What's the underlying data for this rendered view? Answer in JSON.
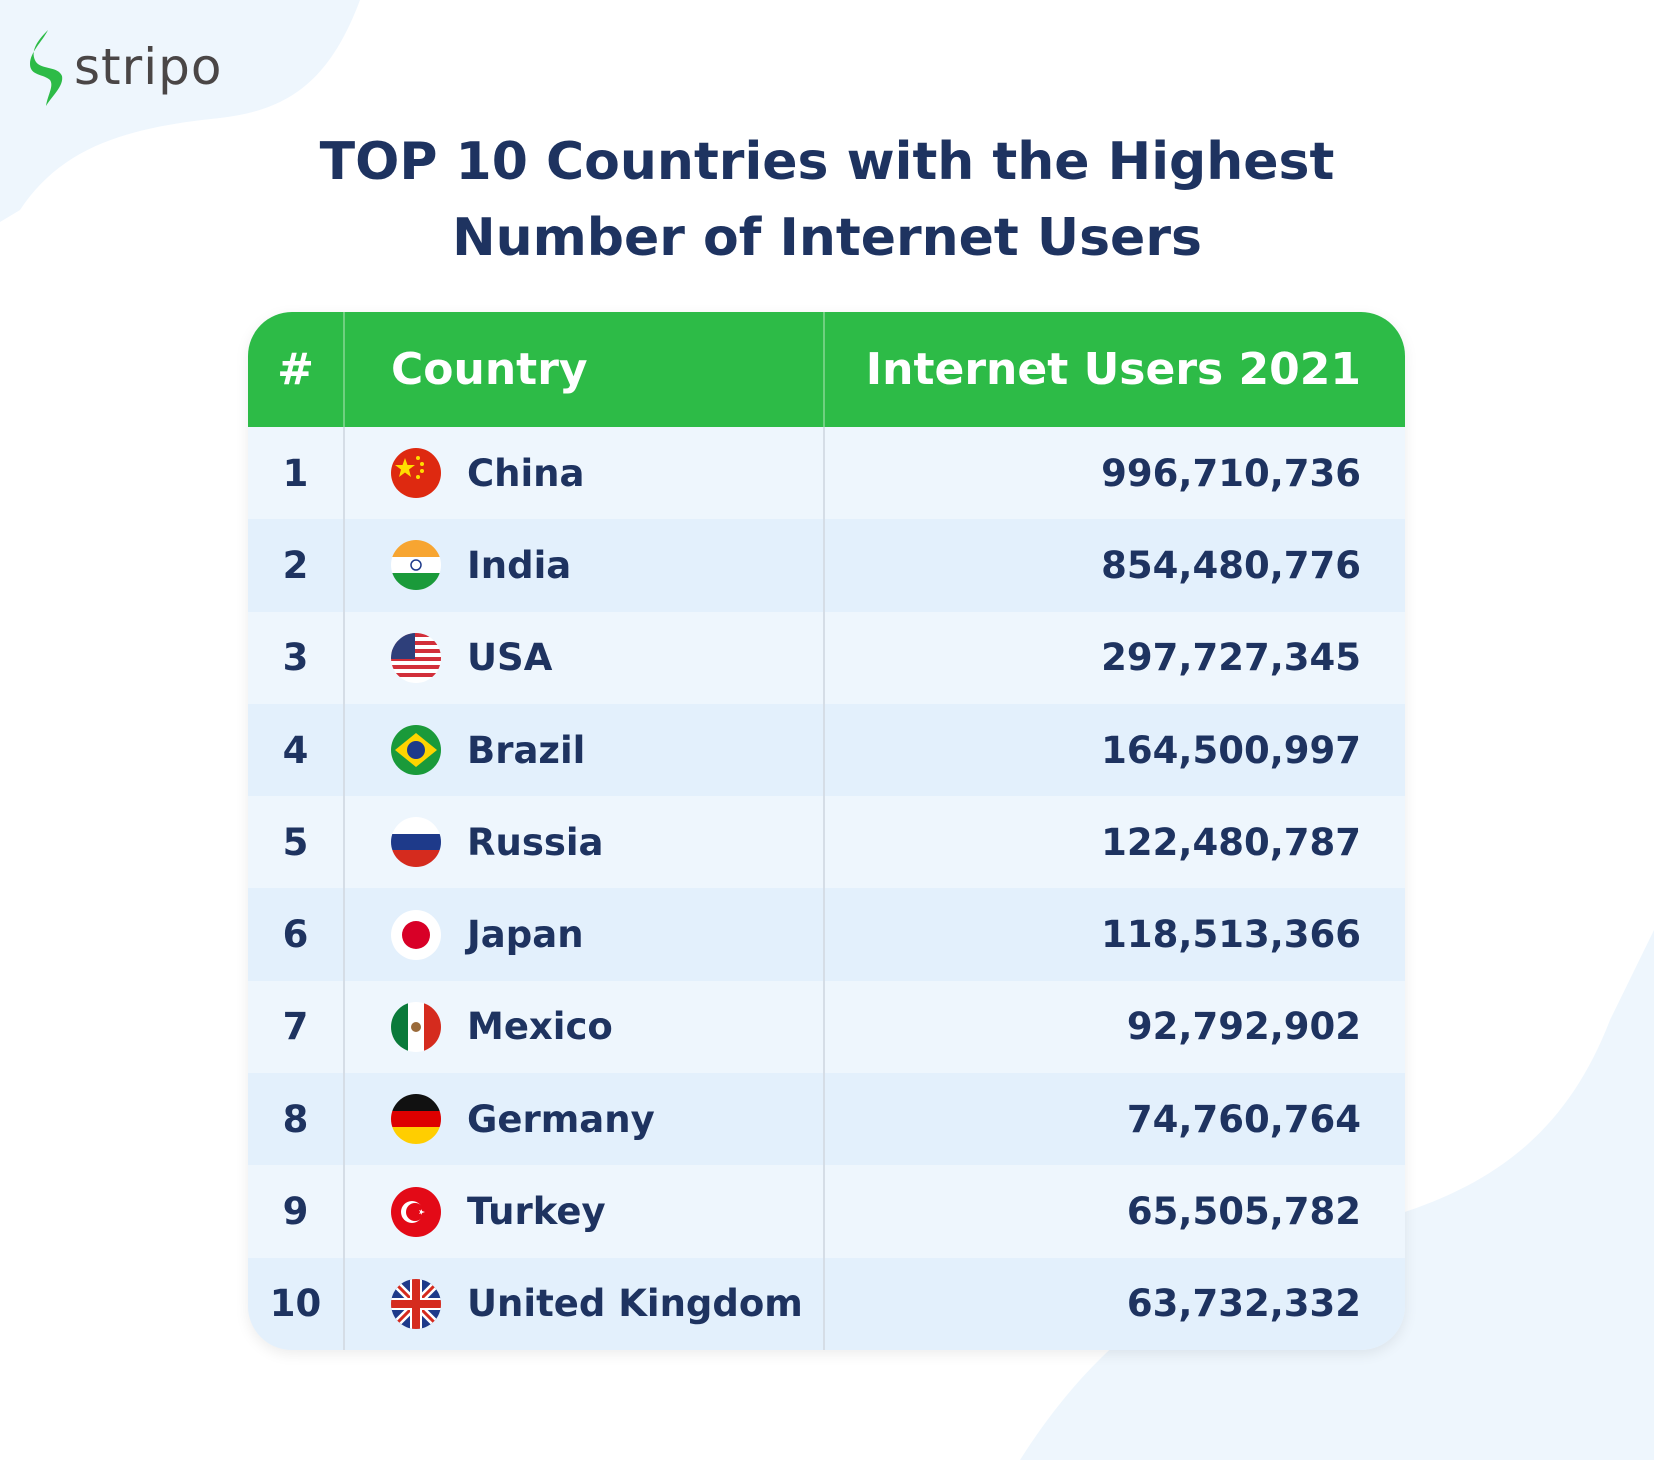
{
  "brand": {
    "name": "stripo",
    "accent": "#2dbb47"
  },
  "title": {
    "line1": "TOP 10 Countries with the Highest",
    "line2": "Number of Internet Users"
  },
  "table": {
    "headers": {
      "rank": "#",
      "country": "Country",
      "users": "Internet Users 2021"
    },
    "rows": [
      {
        "rank": "1",
        "country": "China",
        "users": "996,710,736",
        "flag": "china-flag"
      },
      {
        "rank": "2",
        "country": "India",
        "users": "854,480,776",
        "flag": "india-flag"
      },
      {
        "rank": "3",
        "country": "USA",
        "users": "297,727,345",
        "flag": "usa-flag"
      },
      {
        "rank": "4",
        "country": "Brazil",
        "users": "164,500,997",
        "flag": "brazil-flag"
      },
      {
        "rank": "5",
        "country": "Russia",
        "users": "122,480,787",
        "flag": "russia-flag"
      },
      {
        "rank": "6",
        "country": "Japan",
        "users": "118,513,366",
        "flag": "japan-flag"
      },
      {
        "rank": "7",
        "country": "Mexico",
        "users": "92,792,902",
        "flag": "mexico-flag"
      },
      {
        "rank": "8",
        "country": "Germany",
        "users": "74,760,764",
        "flag": "germany-flag"
      },
      {
        "rank": "9",
        "country": "Turkey",
        "users": "65,505,782",
        "flag": "turkey-flag"
      },
      {
        "rank": "10",
        "country": "United Kingdom",
        "users": "63,732,332",
        "flag": "uk-flag"
      }
    ]
  }
}
